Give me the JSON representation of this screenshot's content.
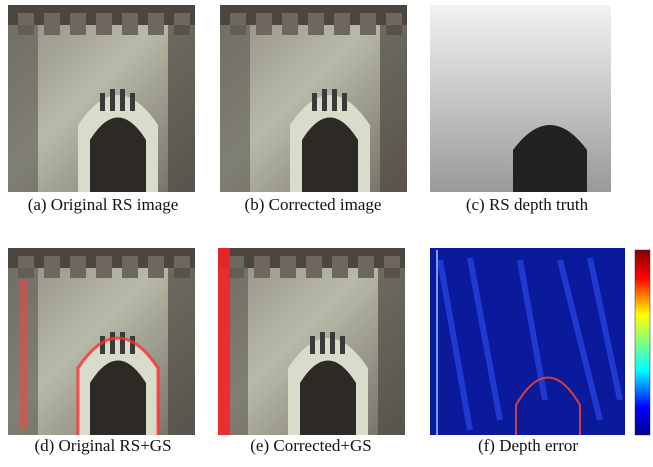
{
  "panels": [
    {
      "caption": "(a)  Original RS image"
    },
    {
      "caption": "(b)  Corrected image"
    },
    {
      "caption": "(c)  RS depth truth"
    },
    {
      "caption": "(d)  Original RS+GS"
    },
    {
      "caption": "(e)  Corrected+GS"
    },
    {
      "caption": "(f)  Depth error"
    }
  ]
}
